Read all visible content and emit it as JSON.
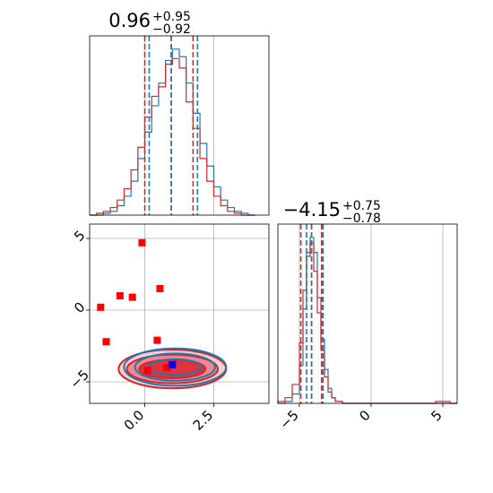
{
  "chart_data": [
    {
      "panel": "marginal-param-1",
      "type": "histogram",
      "title": {
        "value": "0.96",
        "upper": "+0.95",
        "lower": "−0.92"
      },
      "xlim": [
        -2.0,
        4.5
      ],
      "grid": true,
      "colors": {
        "series_a": "#d62728",
        "series_b": "#1f77b4"
      },
      "quantiles": {
        "series_a": [
          0.0,
          0.96,
          1.75
        ],
        "series_b": [
          0.16,
          0.96,
          1.91
        ]
      },
      "series": [
        {
          "bin_edges": [
            -2.0,
            -1.75,
            -1.5,
            -1.25,
            -1.0,
            -0.75,
            -0.5,
            -0.25,
            0.0,
            0.25,
            0.5,
            0.75,
            1.0,
            1.25,
            1.5,
            1.75,
            2.0,
            2.25,
            2.5,
            2.75,
            3.0,
            3.25,
            3.5,
            3.75,
            4.0
          ],
          "counts": [
            0,
            1,
            2,
            4,
            8,
            14,
            24,
            36,
            52,
            63,
            68,
            80,
            83,
            78,
            60,
            46,
            30,
            18,
            10,
            5,
            2,
            1,
            0,
            0
          ]
        },
        {
          "bin_edges": [
            -2.0,
            -1.75,
            -1.5,
            -1.25,
            -1.0,
            -0.75,
            -0.5,
            -0.25,
            0.0,
            0.25,
            0.5,
            0.75,
            1.0,
            1.25,
            1.5,
            1.75,
            2.0,
            2.25,
            2.5,
            2.75,
            3.0,
            3.25,
            3.5,
            3.75,
            4.0
          ],
          "counts": [
            0,
            0,
            1,
            2,
            5,
            10,
            18,
            30,
            44,
            58,
            70,
            82,
            88,
            84,
            70,
            54,
            38,
            26,
            15,
            8,
            4,
            2,
            1,
            0
          ]
        }
      ]
    },
    {
      "panel": "marginal-param-2",
      "type": "histogram",
      "title": {
        "value": "−4.15",
        "upper": "+0.75",
        "lower": "−0.78"
      },
      "xlim": [
        -6.5,
        6.0
      ],
      "xticks": [
        "−5",
        "0",
        "5"
      ],
      "grid": true,
      "colors": {
        "series_a": "#d62728",
        "series_b": "#1f77b4"
      },
      "quantiles": {
        "series_a": [
          -4.9,
          -4.15,
          -3.45
        ],
        "series_b": [
          -4.5,
          -4.15,
          -3.35
        ]
      },
      "series": [
        {
          "bin_edges": [
            -6.5,
            -6.0,
            -5.5,
            -5.0,
            -4.75,
            -4.5,
            -4.25,
            -4.0,
            -3.75,
            -3.5,
            -3.25,
            -3.0,
            -2.75,
            -2.5,
            -2.0,
            4.5,
            5.0,
            5.5,
            6.0
          ],
          "counts": [
            1,
            3,
            10,
            32,
            60,
            78,
            85,
            70,
            48,
            28,
            14,
            6,
            3,
            1,
            0,
            1,
            1,
            0
          ]
        },
        {
          "bin_edges": [
            -6.5,
            -6.0,
            -5.5,
            -5.0,
            -4.75,
            -4.5,
            -4.25,
            -4.0,
            -3.75,
            -3.5,
            -3.25,
            -3.0,
            -2.75,
            -2.5,
            -2.0,
            4.5,
            5.0,
            5.5,
            6.0
          ],
          "counts": [
            0,
            1,
            5,
            20,
            50,
            80,
            88,
            80,
            56,
            34,
            18,
            8,
            3,
            1,
            0,
            0,
            0,
            0
          ]
        }
      ]
    },
    {
      "panel": "joint-param-1-param-2",
      "type": "scatter",
      "xlim": [
        -2.0,
        4.5
      ],
      "ylim": [
        -6.5,
        6.0
      ],
      "xticks": [
        "0.0",
        "2.5"
      ],
      "yticks": [
        "−5",
        "0",
        "5"
      ],
      "grid": true,
      "contours": {
        "center": [
          1.0,
          -4.1
        ],
        "fill_half_widths": [
          {
            "x": 1.2,
            "y": 0.65
          },
          {
            "x": 1.65,
            "y": 1.0
          },
          {
            "x": 1.95,
            "y": 1.35
          }
        ],
        "line_half_widths": [
          {
            "x": 0.95,
            "y": 0.55
          },
          {
            "x": 1.45,
            "y": 0.95
          },
          {
            "x": 1.85,
            "y": 1.3
          }
        ],
        "fill_colors": [
          "#e1333b",
          "#ee8a8e",
          "#f8cfd1"
        ],
        "line_colors": [
          "#d62728",
          "#1f77b4"
        ]
      },
      "markers": {
        "red_squares": [
          {
            "x": -1.6,
            "y": 0.2
          },
          {
            "x": -1.4,
            "y": -2.2
          },
          {
            "x": -0.9,
            "y": 1.0
          },
          {
            "x": -0.45,
            "y": 0.9
          },
          {
            "x": -0.1,
            "y": 4.7
          },
          {
            "x": 0.1,
            "y": -4.2
          },
          {
            "x": 0.45,
            "y": -2.1
          },
          {
            "x": 0.55,
            "y": 1.5
          },
          {
            "x": 0.8,
            "y": -4.0
          }
        ],
        "blue_squares": [
          {
            "x": 1.0,
            "y": -3.8
          }
        ],
        "red_color": "#ff0000",
        "blue_color": "#0000ff"
      }
    }
  ]
}
